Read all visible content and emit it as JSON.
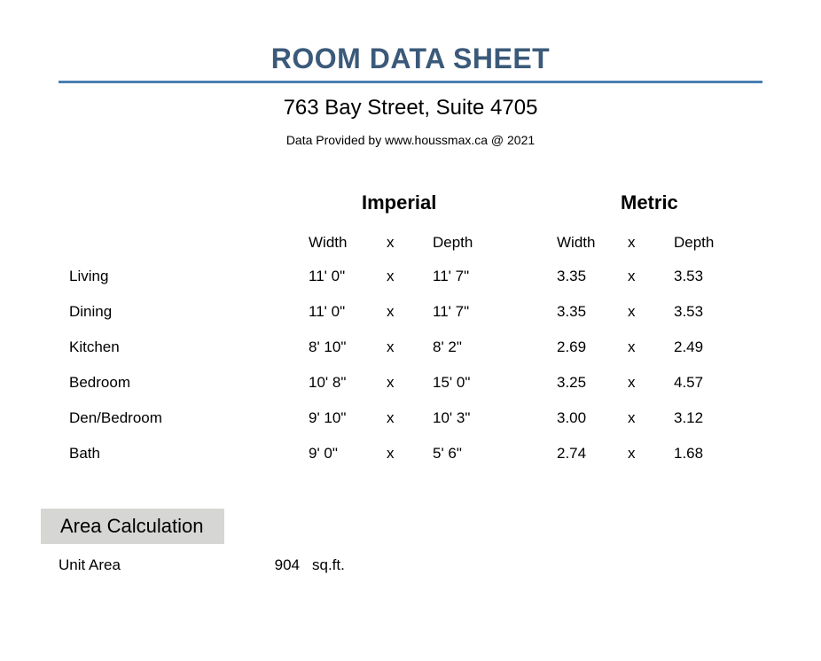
{
  "title": "ROOM DATA SHEET",
  "address": "763 Bay Street, Suite 4705",
  "provided_by": "Data Provided by www.houssmax.ca @ 2021",
  "colors": {
    "title_text": "#3b5a7a",
    "rule": "#4a7fb0",
    "body_text": "#000000",
    "area_header_bg": "#d6d6d4",
    "background": "#ffffff"
  },
  "fonts": {
    "title_size_pt": 24,
    "address_size_pt": 18,
    "provided_size_pt": 10,
    "group_header_size_pt": 16,
    "body_size_pt": 13,
    "area_header_size_pt": 16
  },
  "group_labels": {
    "imperial": "Imperial",
    "metric": "Metric"
  },
  "column_labels": {
    "width": "Width",
    "x": "x",
    "depth": "Depth"
  },
  "rooms": [
    {
      "name": "Living",
      "imp_w": "11' 0\"",
      "imp_x": "x",
      "imp_d": "11' 7\"",
      "met_w": "3.35",
      "met_x": "x",
      "met_d": "3.53"
    },
    {
      "name": "Dining",
      "imp_w": "11' 0\"",
      "imp_x": "x",
      "imp_d": "11' 7\"",
      "met_w": "3.35",
      "met_x": "x",
      "met_d": "3.53"
    },
    {
      "name": "Kitchen",
      "imp_w": "8' 10\"",
      "imp_x": "x",
      "imp_d": "8' 2\"",
      "met_w": "2.69",
      "met_x": "x",
      "met_d": "2.49"
    },
    {
      "name": "Bedroom",
      "imp_w": "10' 8\"",
      "imp_x": "x",
      "imp_d": "15' 0\"",
      "met_w": "3.25",
      "met_x": "x",
      "met_d": "4.57"
    },
    {
      "name": "Den/Bedroom",
      "imp_w": "9' 10\"",
      "imp_x": "x",
      "imp_d": "10' 3\"",
      "met_w": "3.00",
      "met_x": "x",
      "met_d": "3.12"
    },
    {
      "name": "Bath",
      "imp_w": "9' 0\"",
      "imp_x": "x",
      "imp_d": "5' 6\"",
      "met_w": "2.74",
      "met_x": "x",
      "met_d": "1.68"
    }
  ],
  "area": {
    "header": "Area Calculation",
    "label": "Unit Area",
    "value": "904",
    "unit": "sq.ft."
  }
}
